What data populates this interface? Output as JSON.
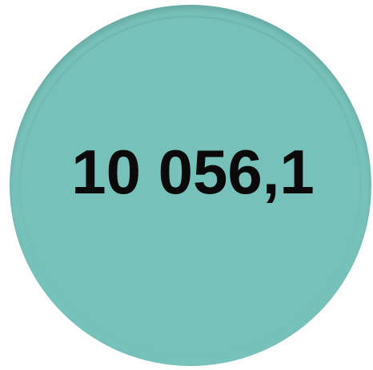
{
  "display": {
    "value_text": "10 056,1"
  }
}
